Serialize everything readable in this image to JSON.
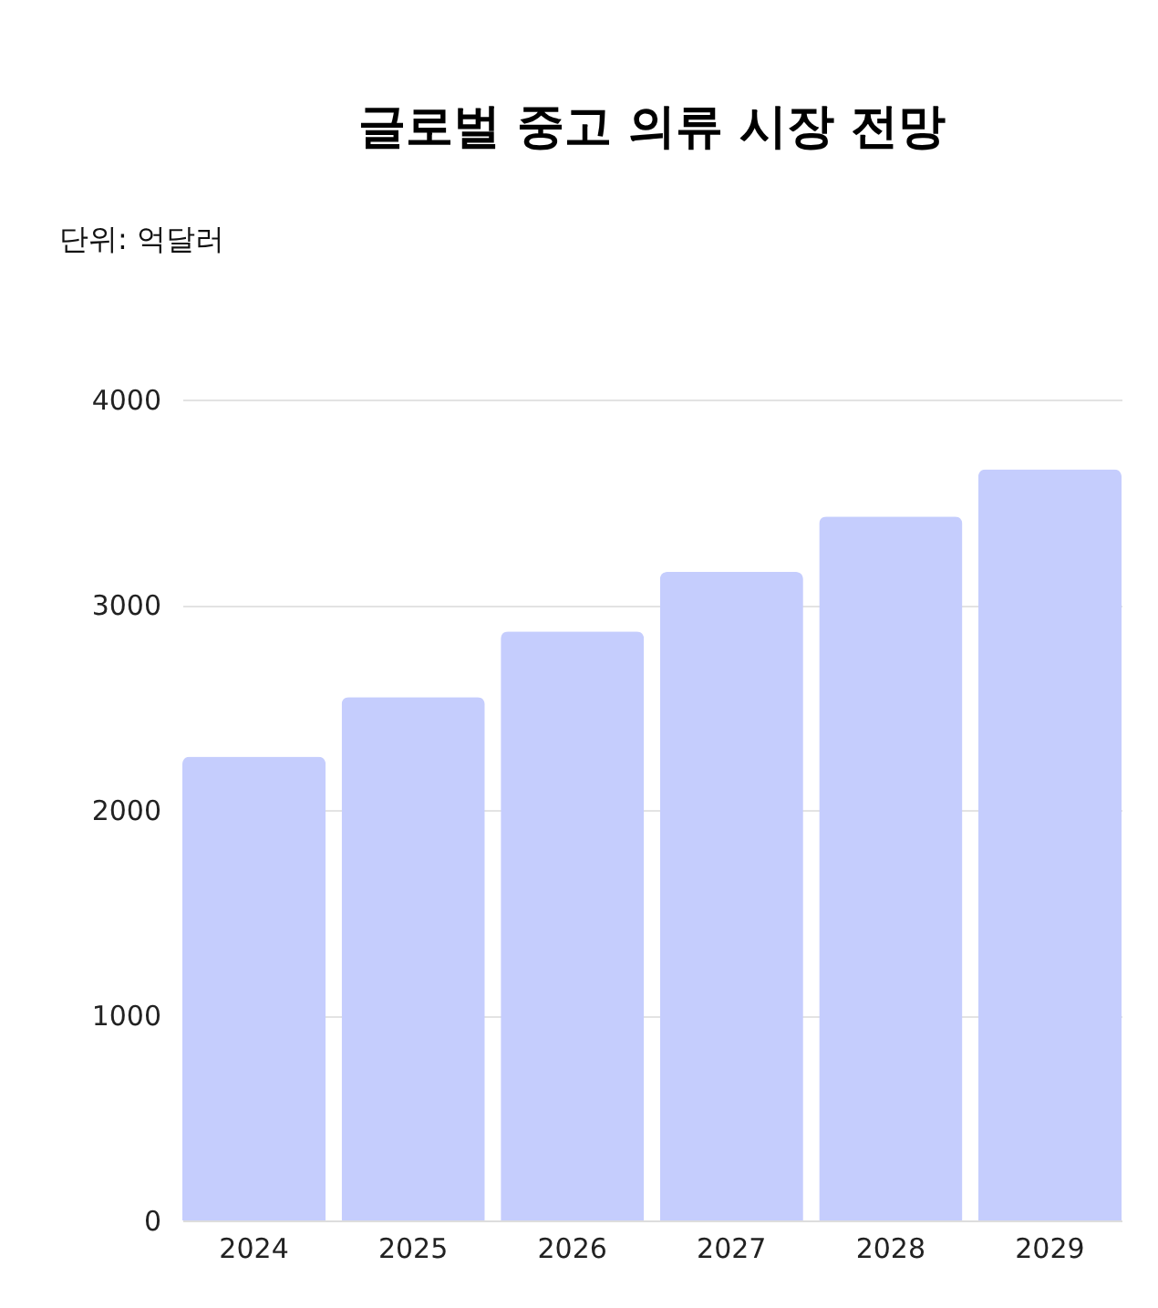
{
  "chart_data": {
    "type": "bar",
    "title": "글로벌 중고 의류 시장 전망",
    "ylabel": "단위: 억달러",
    "categories": [
      "2024",
      "2025",
      "2026",
      "2027",
      "2028",
      "2029"
    ],
    "values": [
      2260,
      2550,
      2870,
      3160,
      3430,
      3660
    ],
    "color": "#c5cdfd",
    "ylim": [
      0,
      4000
    ],
    "yticks": [
      0,
      1000,
      2000,
      3000,
      4000
    ],
    "grid": "y"
  }
}
